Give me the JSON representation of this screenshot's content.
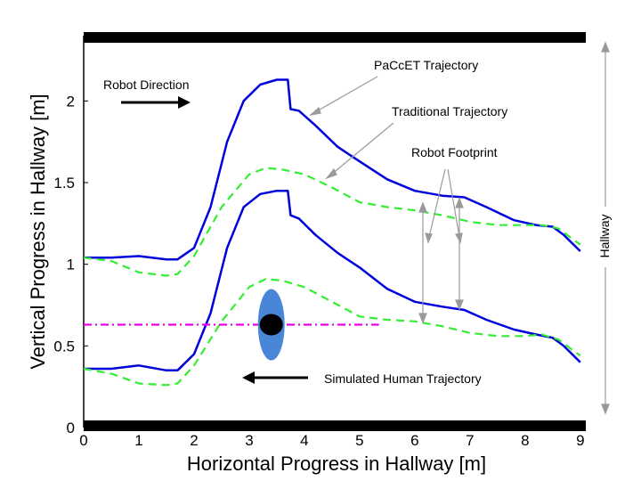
{
  "chart_data": {
    "type": "line",
    "title": "",
    "xlabel": "Horizontal Progress in Hallway [m]",
    "ylabel": "Vertical Progress in Hallway [m]",
    "xlim": [
      0,
      9.1
    ],
    "ylim": [
      0,
      2.4
    ],
    "xticks": [
      "0",
      "1",
      "2",
      "3",
      "4",
      "5",
      "6",
      "7",
      "8",
      "9"
    ],
    "yticks": [
      "0",
      "0.5",
      "1",
      "1.5",
      "2"
    ],
    "grid": false,
    "series": [
      {
        "name": "PaCcET Trajectory",
        "role": "upper",
        "color": "#0000dd",
        "style": "solid",
        "x": [
          0,
          0.5,
          1.0,
          1.5,
          1.7,
          2.0,
          2.3,
          2.6,
          2.9,
          3.2,
          3.5,
          3.7,
          3.75,
          3.9,
          4.2,
          4.6,
          5.0,
          5.5,
          6.0,
          6.5,
          6.9,
          7.3,
          7.8,
          8.2,
          8.5,
          8.7,
          9.0
        ],
        "y": [
          1.04,
          1.04,
          1.05,
          1.03,
          1.03,
          1.1,
          1.35,
          1.75,
          2.0,
          2.1,
          2.13,
          2.13,
          1.95,
          1.94,
          1.85,
          1.72,
          1.63,
          1.52,
          1.45,
          1.42,
          1.41,
          1.35,
          1.27,
          1.24,
          1.23,
          1.18,
          1.08
        ]
      },
      {
        "name": "PaCcET Trajectory",
        "role": "lower",
        "color": "#0000dd",
        "style": "solid",
        "x": [
          0,
          0.5,
          1.0,
          1.5,
          1.7,
          2.0,
          2.3,
          2.6,
          2.9,
          3.2,
          3.5,
          3.7,
          3.75,
          3.9,
          4.2,
          4.6,
          5.0,
          5.5,
          6.0,
          6.5,
          6.9,
          7.3,
          7.8,
          8.2,
          8.5,
          8.7,
          9.0
        ],
        "y": [
          0.36,
          0.36,
          0.38,
          0.35,
          0.35,
          0.45,
          0.7,
          1.1,
          1.35,
          1.43,
          1.45,
          1.45,
          1.3,
          1.28,
          1.18,
          1.07,
          0.98,
          0.85,
          0.77,
          0.74,
          0.72,
          0.66,
          0.6,
          0.57,
          0.55,
          0.5,
          0.4
        ]
      },
      {
        "name": "Traditional Trajectory",
        "role": "upper",
        "color": "#33ee33",
        "style": "dashed",
        "x": [
          0,
          0.5,
          1.0,
          1.5,
          1.7,
          2.0,
          2.5,
          3.0,
          3.3,
          3.6,
          4.0,
          4.5,
          5.0,
          5.5,
          6.0,
          6.5,
          7.0,
          7.5,
          8.0,
          8.3,
          8.6,
          9.0
        ],
        "y": [
          1.04,
          1.02,
          0.95,
          0.93,
          0.94,
          1.05,
          1.35,
          1.55,
          1.59,
          1.58,
          1.55,
          1.47,
          1.38,
          1.35,
          1.33,
          1.3,
          1.26,
          1.24,
          1.24,
          1.24,
          1.22,
          1.12
        ]
      },
      {
        "name": "Traditional Trajectory",
        "role": "lower",
        "color": "#33ee33",
        "style": "dashed",
        "x": [
          0,
          0.5,
          1.0,
          1.5,
          1.7,
          2.0,
          2.5,
          3.0,
          3.3,
          3.6,
          4.0,
          4.5,
          5.0,
          5.5,
          6.0,
          6.5,
          7.0,
          7.5,
          8.0,
          8.3,
          8.6,
          9.0
        ],
        "y": [
          0.36,
          0.33,
          0.27,
          0.26,
          0.27,
          0.38,
          0.65,
          0.86,
          0.91,
          0.9,
          0.86,
          0.77,
          0.68,
          0.66,
          0.65,
          0.62,
          0.58,
          0.56,
          0.56,
          0.57,
          0.54,
          0.44
        ]
      },
      {
        "name": "Simulated Human Trajectory",
        "color": "#ee00ee",
        "style": "dashdot",
        "x": [
          0,
          5.35
        ],
        "y": [
          0.63,
          0.63
        ]
      }
    ],
    "human_marker": {
      "x": 3.4,
      "y": 0.63,
      "body_color": "#4a86d8",
      "head_color": "#000000"
    },
    "annotations": [
      {
        "text": "PaCcET Trajectory",
        "x": 5.0,
        "y": 2.24
      },
      {
        "text": "Traditional Trajectory",
        "x": 5.35,
        "y": 1.94
      },
      {
        "text": "Robot Footprint",
        "x": 5.9,
        "y": 1.6
      },
      {
        "text": "Robot Direction",
        "x": 0.35,
        "y": 2.11
      },
      {
        "text": "Simulated Human Trajectory",
        "x": 4.1,
        "y": 0.3
      },
      {
        "text": "Hallway",
        "x": 9.35,
        "y": 1.19
      }
    ]
  }
}
